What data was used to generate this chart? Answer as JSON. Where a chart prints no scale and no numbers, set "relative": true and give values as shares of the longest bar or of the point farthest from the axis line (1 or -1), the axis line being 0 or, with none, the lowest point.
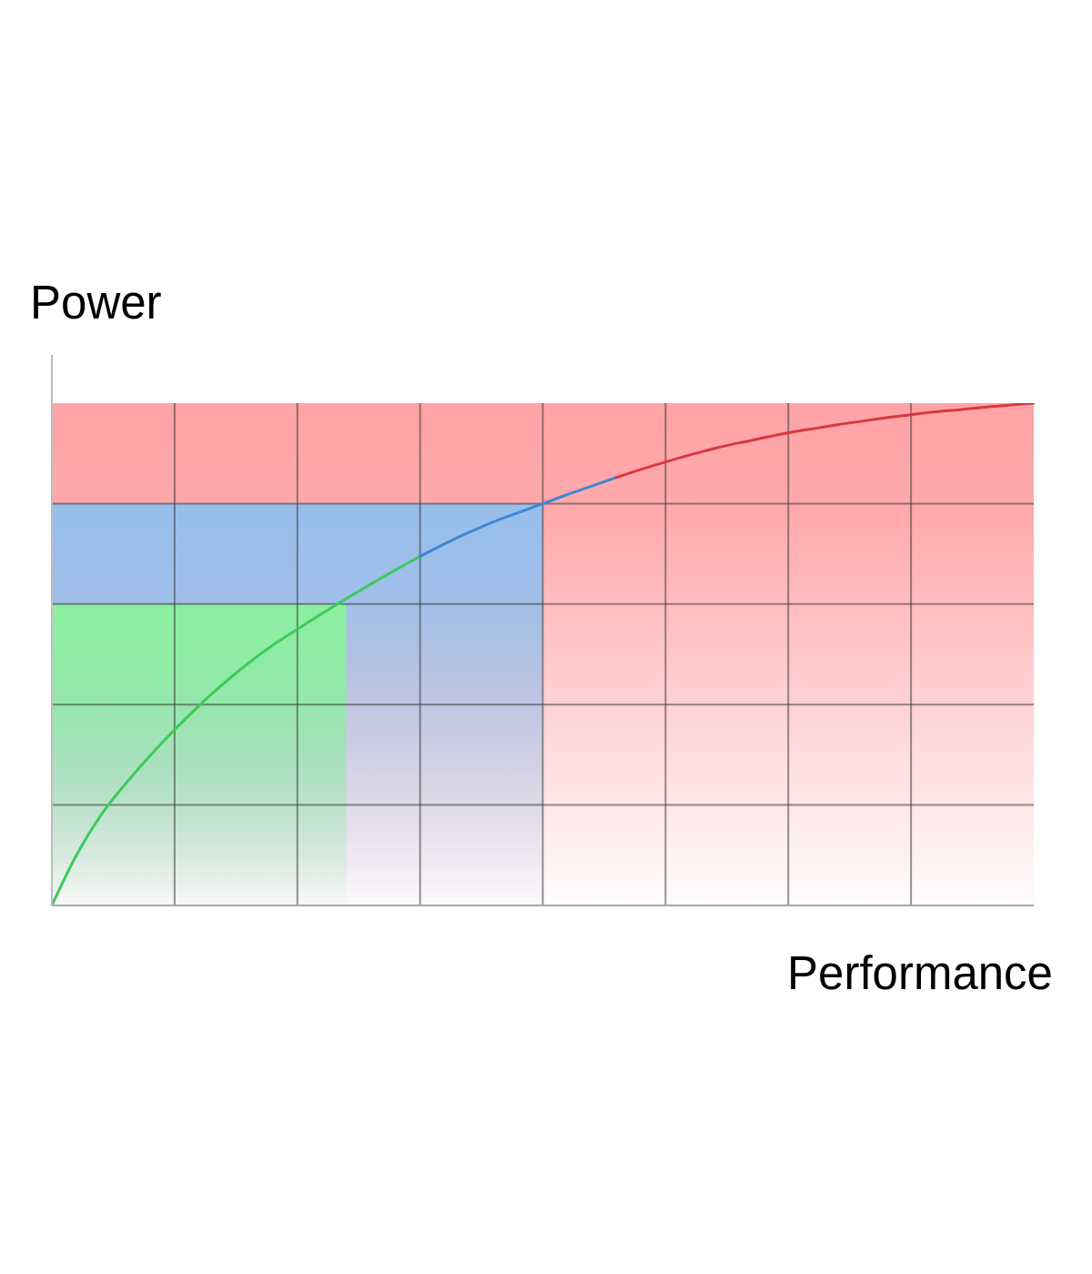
{
  "chart_data": {
    "type": "line",
    "xlabel": "Performance",
    "ylabel": "Power",
    "relative": true,
    "grid": true,
    "categories": [
      null,
      null,
      null,
      null,
      null,
      null,
      null,
      null,
      null,
      null,
      null,
      null,
      null,
      null,
      null,
      null,
      null,
      null,
      null,
      null,
      null,
      null,
      null,
      null,
      null,
      null,
      null,
      null,
      null,
      null,
      null,
      null,
      null,
      null,
      null,
      null,
      null,
      null,
      null,
      null,
      null
    ],
    "bands": [
      {
        "axis": "y",
        "from": 0,
        "to": 1,
        "color": "#ffa3a6"
      }
    ],
    "series": [
      {
        "type": "area",
        "color": "#97bfec",
        "values": [
          0.8,
          0.8,
          0.8,
          0.8,
          0.8,
          0.8,
          0.8,
          0.8,
          0.8,
          0.8,
          0.8,
          0.8,
          0.8,
          0.8,
          0.8,
          0.8,
          0.8,
          0.8,
          0.8,
          0.8,
          0.8,
          null,
          null,
          null,
          null,
          null,
          null,
          null,
          null,
          null,
          null,
          null,
          null,
          null,
          null,
          null,
          null,
          null,
          null,
          null,
          null
        ]
      },
      {
        "type": "area",
        "color": "#8ceea0",
        "values": [
          0.6,
          0.6,
          0.6,
          0.6,
          0.6,
          0.6,
          0.6,
          0.6,
          0.6,
          0.6,
          0.6,
          0.6,
          0.6,
          null,
          null,
          null,
          null,
          null,
          null,
          null,
          null,
          null,
          null,
          null,
          null,
          null,
          null,
          null,
          null,
          null,
          null,
          null,
          null,
          null,
          null,
          null,
          null,
          null,
          null,
          null,
          null
        ]
      },
      {
        "color": "#3ccb5a",
        "values": [
          0,
          0.1,
          0.18,
          0.242,
          0.298,
          0.35,
          0.398,
          0.442,
          0.482,
          0.518,
          0.55,
          0.581,
          0.611,
          0.64,
          0.668,
          0.695,
          null,
          null,
          null,
          null,
          null,
          null,
          null,
          null,
          null,
          null,
          null,
          null,
          null,
          null,
          null,
          null,
          null,
          null,
          null,
          null,
          null,
          null,
          null,
          null,
          null
        ]
      },
      {
        "color": "#3d87d3",
        "values": [
          null,
          null,
          null,
          null,
          null,
          null,
          null,
          null,
          null,
          null,
          null,
          null,
          null,
          null,
          null,
          0.695,
          0.72,
          0.743,
          0.764,
          0.782,
          0.8,
          0.818,
          0.835,
          0.852,
          null,
          null,
          null,
          null,
          null,
          null,
          null,
          null,
          null,
          null,
          null,
          null,
          null,
          null,
          null,
          null,
          null
        ]
      },
      {
        "color": "#d8393e",
        "values": [
          null,
          null,
          null,
          null,
          null,
          null,
          null,
          null,
          null,
          null,
          null,
          null,
          null,
          null,
          null,
          null,
          null,
          null,
          null,
          null,
          null,
          null,
          null,
          0.852,
          0.868,
          0.883,
          0.897,
          0.91,
          0.921,
          0.931,
          0.941,
          0.949,
          0.957,
          0.964,
          0.971,
          0.977,
          0.983,
          0.987,
          0.992,
          0.996,
          1
        ]
      }
    ]
  }
}
